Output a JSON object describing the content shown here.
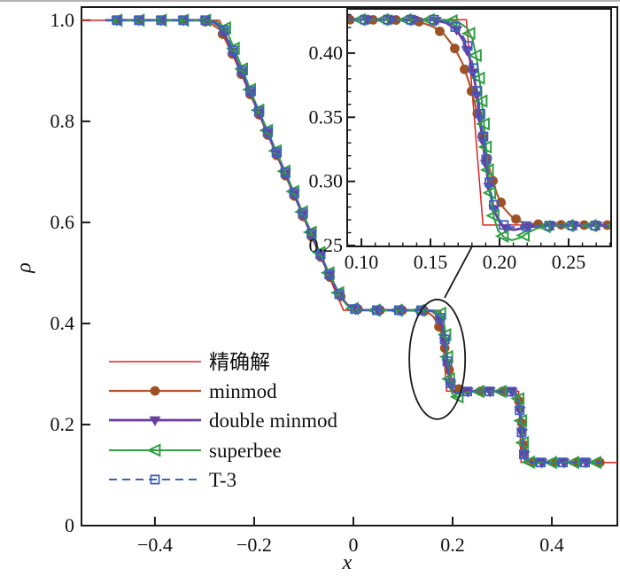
{
  "figure": {
    "background": "#ffffff",
    "top_edge_color": "#b3b3b3",
    "axis_color": "#1a1a1a"
  },
  "chart_data": {
    "type": "line",
    "title": "",
    "xlabel": "x",
    "ylabel": "ρ",
    "legend_position": "lower-left-inside",
    "grid": false,
    "main_axis": {
      "xlim": [
        -0.548,
        0.532
      ],
      "ylim": [
        0,
        1.026
      ],
      "xticks": [
        {
          "v": -0.4,
          "t": "−0.4"
        },
        {
          "v": -0.2,
          "t": "−0.2"
        },
        {
          "v": 0,
          "t": "0"
        },
        {
          "v": 0.2,
          "t": "0.2"
        },
        {
          "v": 0.4,
          "t": "0.4"
        }
      ],
      "yticks": [
        {
          "v": 0,
          "t": "0"
        },
        {
          "v": 0.2,
          "t": "0.2"
        },
        {
          "v": 0.4,
          "t": "0.4"
        },
        {
          "v": 0.6,
          "t": "0.6"
        },
        {
          "v": 0.8,
          "t": "0.8"
        },
        {
          "v": 1.0,
          "t": "1.0"
        }
      ]
    },
    "inset_axis": {
      "xlim": [
        0.0897,
        0.2808
      ],
      "ylim": [
        0.2493,
        0.4345
      ],
      "minor_step": 0.01,
      "xticks": [
        {
          "v": 0.1,
          "t": "0.10"
        },
        {
          "v": 0.15,
          "t": "0.15"
        },
        {
          "v": 0.2,
          "t": "0.20"
        },
        {
          "v": 0.25,
          "t": "0.25"
        }
      ],
      "yticks": [
        {
          "v": 0.25,
          "t": "0.25"
        },
        {
          "v": 0.3,
          "t": "0.30"
        },
        {
          "v": 0.35,
          "t": "0.35"
        },
        {
          "v": 0.4,
          "t": "0.40"
        }
      ]
    },
    "plateaus": {
      "left_state": 1.0,
      "post_rarefaction": 0.426,
      "post_contact": 0.266,
      "right_state": 0.125,
      "rarefaction_head_x": -0.27,
      "rarefaction_tail_x": -0.02,
      "contact_x": 0.185,
      "shock_x": 0.336
    },
    "series": [
      {
        "label": "精确解",
        "color": "#e02020",
        "line_width": 1.5,
        "dash": "",
        "marker": "none",
        "marker_color": "#e02020",
        "points": [
          [
            -0.548,
            1
          ],
          [
            -0.27,
            1
          ],
          [
            -0.02,
            0.426
          ],
          [
            0.176,
            0.426
          ],
          [
            0.188,
            0.266
          ],
          [
            0.333,
            0.266
          ],
          [
            0.338,
            0.125
          ],
          [
            0.532,
            0.125
          ]
        ]
      },
      {
        "label": "minmod",
        "color": "#b2572e",
        "line_width": 2.2,
        "dash": "",
        "marker": "circle",
        "marker_color": "#9d5226",
        "points": [
          [
            -0.5,
            1
          ],
          [
            -0.31,
            1
          ],
          [
            -0.29,
            0.995
          ],
          [
            -0.268,
            0.981
          ],
          [
            -0.24,
            0.925
          ],
          [
            -0.2,
            0.836
          ],
          [
            -0.16,
            0.745
          ],
          [
            -0.12,
            0.655
          ],
          [
            -0.08,
            0.563
          ],
          [
            -0.05,
            0.497
          ],
          [
            -0.03,
            0.459
          ],
          [
            -0.013,
            0.438
          ],
          [
            0.002,
            0.4295
          ],
          [
            0.02,
            0.4268
          ],
          [
            0.06,
            0.4262
          ],
          [
            0.13,
            0.4258
          ],
          [
            0.142,
            0.4245
          ],
          [
            0.152,
            0.4205
          ],
          [
            0.16,
            0.4145
          ],
          [
            0.167,
            0.4048
          ],
          [
            0.173,
            0.3925
          ],
          [
            0.178,
            0.377
          ],
          [
            0.183,
            0.357
          ],
          [
            0.188,
            0.333
          ],
          [
            0.193,
            0.3085
          ],
          [
            0.198,
            0.2905
          ],
          [
            0.203,
            0.2793
          ],
          [
            0.209,
            0.2722
          ],
          [
            0.216,
            0.2683
          ],
          [
            0.225,
            0.2667
          ],
          [
            0.25,
            0.266
          ],
          [
            0.315,
            0.2658
          ],
          [
            0.324,
            0.2645
          ],
          [
            0.3305,
            0.2575
          ],
          [
            0.335,
            0.241
          ],
          [
            0.339,
            0.207
          ],
          [
            0.343,
            0.1665
          ],
          [
            0.347,
            0.1385
          ],
          [
            0.3515,
            0.1282
          ],
          [
            0.358,
            0.1258
          ],
          [
            0.375,
            0.125
          ],
          [
            0.5,
            0.125
          ]
        ]
      },
      {
        "label": "double minmod",
        "color": "#6a3d9e",
        "line_width": 2.8,
        "dash": "",
        "marker": "triangle-down",
        "marker_color": "#6a3d9e",
        "points": [
          [
            -0.5,
            1
          ],
          [
            -0.3,
            1
          ],
          [
            -0.282,
            0.996
          ],
          [
            -0.265,
            0.985
          ],
          [
            -0.24,
            0.93
          ],
          [
            -0.2,
            0.84
          ],
          [
            -0.16,
            0.749
          ],
          [
            -0.12,
            0.658
          ],
          [
            -0.08,
            0.566
          ],
          [
            -0.05,
            0.5
          ],
          [
            -0.028,
            0.456
          ],
          [
            -0.012,
            0.4365
          ],
          [
            0.003,
            0.4285
          ],
          [
            0.02,
            0.4265
          ],
          [
            0.15,
            0.426
          ],
          [
            0.161,
            0.4238
          ],
          [
            0.169,
            0.4182
          ],
          [
            0.1745,
            0.4085
          ],
          [
            0.179,
            0.394
          ],
          [
            0.1828,
            0.3735
          ],
          [
            0.1862,
            0.3465
          ],
          [
            0.1895,
            0.317
          ],
          [
            0.1928,
            0.2925
          ],
          [
            0.1965,
            0.2762
          ],
          [
            0.2005,
            0.2672
          ],
          [
            0.2055,
            0.2628
          ],
          [
            0.211,
            0.2623
          ],
          [
            0.218,
            0.2638
          ],
          [
            0.228,
            0.2652
          ],
          [
            0.242,
            0.2656
          ],
          [
            0.318,
            0.2655
          ],
          [
            0.3265,
            0.2628
          ],
          [
            0.332,
            0.2525
          ],
          [
            0.3365,
            0.2235
          ],
          [
            0.3405,
            0.1775
          ],
          [
            0.3445,
            0.1405
          ],
          [
            0.3485,
            0.128
          ],
          [
            0.355,
            0.1257
          ],
          [
            0.372,
            0.125
          ],
          [
            0.5,
            0.125
          ]
        ]
      },
      {
        "label": "superbee",
        "color": "#2f9e44",
        "line_width": 2.0,
        "dash": "",
        "marker": "triangle-left-open",
        "marker_color": "#2f9e44",
        "points": [
          [
            -0.5,
            1
          ],
          [
            -0.295,
            1
          ],
          [
            -0.275,
            0.997
          ],
          [
            -0.258,
            0.985
          ],
          [
            -0.235,
            0.932
          ],
          [
            -0.2,
            0.843
          ],
          [
            -0.16,
            0.751
          ],
          [
            -0.12,
            0.66
          ],
          [
            -0.08,
            0.568
          ],
          [
            -0.05,
            0.501
          ],
          [
            -0.026,
            0.453
          ],
          [
            -0.01,
            0.4335
          ],
          [
            0.004,
            0.4275
          ],
          [
            0.02,
            0.4262
          ],
          [
            0.16,
            0.426
          ],
          [
            0.17,
            0.4245
          ],
          [
            0.1765,
            0.4195
          ],
          [
            0.1805,
            0.4105
          ],
          [
            0.1835,
            0.3955
          ],
          [
            0.186,
            0.375
          ],
          [
            0.1885,
            0.348
          ],
          [
            0.191,
            0.3175
          ],
          [
            0.1935,
            0.2895
          ],
          [
            0.196,
            0.2715
          ],
          [
            0.199,
            0.2615
          ],
          [
            0.2035,
            0.2562
          ],
          [
            0.209,
            0.2542
          ],
          [
            0.2145,
            0.2558
          ],
          [
            0.221,
            0.2602
          ],
          [
            0.2285,
            0.2642
          ],
          [
            0.24,
            0.2655
          ],
          [
            0.318,
            0.2656
          ],
          [
            0.3275,
            0.2635
          ],
          [
            0.3325,
            0.2555
          ],
          [
            0.3365,
            0.2335
          ],
          [
            0.34,
            0.1925
          ],
          [
            0.3435,
            0.1485
          ],
          [
            0.347,
            0.1295
          ],
          [
            0.3515,
            0.1258
          ],
          [
            0.362,
            0.125
          ],
          [
            0.5,
            0.125
          ]
        ]
      },
      {
        "label": "T-3",
        "color": "#3f5fbf",
        "line_width": 2.0,
        "dash": "9,6",
        "marker": "square-open",
        "marker_color": "#3f5fbf",
        "points": [
          [
            -0.5,
            1
          ],
          [
            -0.298,
            1
          ],
          [
            -0.279,
            0.996
          ],
          [
            -0.262,
            0.984
          ],
          [
            -0.238,
            0.93
          ],
          [
            -0.2,
            0.841
          ],
          [
            -0.16,
            0.75
          ],
          [
            -0.12,
            0.659
          ],
          [
            -0.08,
            0.567
          ],
          [
            -0.05,
            0.5
          ],
          [
            -0.027,
            0.455
          ],
          [
            -0.011,
            0.4355
          ],
          [
            0.004,
            0.428
          ],
          [
            0.02,
            0.4263
          ],
          [
            0.155,
            0.426
          ],
          [
            0.165,
            0.4232
          ],
          [
            0.172,
            0.4165
          ],
          [
            0.177,
            0.4055
          ],
          [
            0.181,
            0.3895
          ],
          [
            0.1845,
            0.3665
          ],
          [
            0.1878,
            0.3395
          ],
          [
            0.191,
            0.3115
          ],
          [
            0.1942,
            0.2888
          ],
          [
            0.1978,
            0.2738
          ],
          [
            0.202,
            0.2665
          ],
          [
            0.207,
            0.2642
          ],
          [
            0.213,
            0.2645
          ],
          [
            0.222,
            0.2653
          ],
          [
            0.242,
            0.2656
          ],
          [
            0.317,
            0.2655
          ],
          [
            0.326,
            0.263
          ],
          [
            0.3315,
            0.2535
          ],
          [
            0.336,
            0.2225
          ],
          [
            0.34,
            0.1745
          ],
          [
            0.344,
            0.138
          ],
          [
            0.348,
            0.1272
          ],
          [
            0.3545,
            0.1256
          ],
          [
            0.372,
            0.125
          ],
          [
            0.5,
            0.125
          ]
        ]
      }
    ],
    "annotations": {
      "ellipse": {
        "cx": 0.169,
        "cy": 0.329,
        "rx": 0.0563,
        "ry": 0.1184,
        "color": "#1a1a1a"
      },
      "connector": {
        "x1": 0.2393,
        "y1": 0.5526,
        "x2": 0.1839,
        "y2": 0.4509,
        "color": "#1a1a1a"
      }
    }
  }
}
